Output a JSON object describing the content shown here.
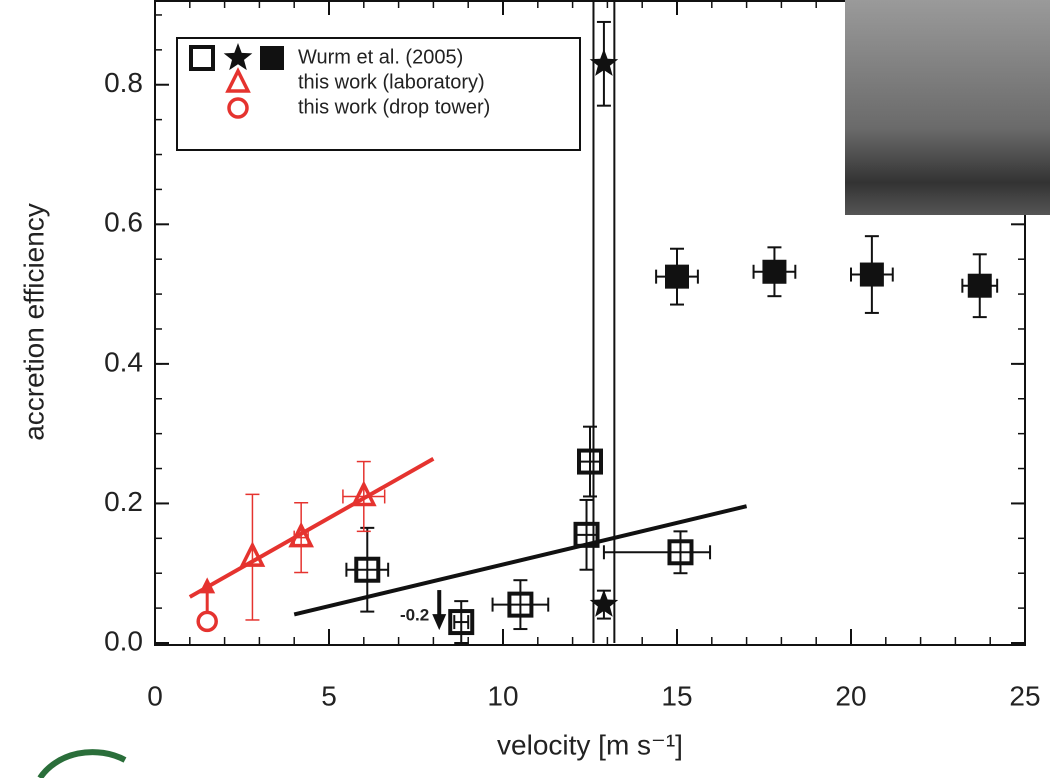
{
  "chart_data": {
    "type": "scatter",
    "x_label": "velocity [m s⁻¹]",
    "y_label": "accretion efficiency",
    "xlim": [
      0,
      25
    ],
    "ylim": [
      0,
      0.92
    ],
    "xticks": [
      0,
      5,
      10,
      15,
      20,
      25
    ],
    "yticks": [
      {
        "value": 0,
        "label": "0.0"
      },
      0.2,
      0.4,
      0.6,
      0.8
    ],
    "x_minor_step": 1,
    "y_minor_step": 0.05,
    "series": [
      {
        "marker": "open-square",
        "color": "#111111",
        "legend": 0,
        "x": [
          6.1,
          8.8,
          10.5,
          12.4,
          12.5,
          15.1
        ],
        "values": [
          0.105,
          0.03,
          0.055,
          0.155,
          0.26,
          0.13
        ],
        "yerr": [
          0.06,
          0.03,
          0.035,
          0.05,
          0.05,
          0.03
        ],
        "xerr_low": [
          0.6,
          0.2,
          0.8,
          0.3,
          0.3,
          2.2
        ],
        "xerr_high": [
          0.6,
          0.2,
          0.8,
          0.3,
          0.3,
          0.85
        ],
        "point_labels": [
          null,
          "-0.2",
          null,
          null,
          null,
          null
        ]
      },
      {
        "marker": "star",
        "color": "#111111",
        "legend": 0,
        "x": [
          12.9,
          12.9
        ],
        "values": [
          0.83,
          0.055
        ],
        "yerr": [
          0.06,
          0.02
        ],
        "xerr_low": [
          0,
          0
        ],
        "xerr_high": [
          0,
          0
        ]
      },
      {
        "marker": "filled-square",
        "color": "#111111",
        "legend": 0,
        "x": [
          15.0,
          17.8,
          20.6,
          23.7
        ],
        "values": [
          0.525,
          0.532,
          0.528,
          0.512
        ],
        "yerr": [
          0.04,
          0.035,
          0.055,
          0.045
        ],
        "xerr_low": [
          0.6,
          0.6,
          0.6,
          0.5
        ],
        "xerr_high": [
          0.6,
          0.6,
          0.6,
          0.5
        ]
      },
      {
        "marker": "triangle",
        "color": "#e5332f",
        "legend": 1,
        "x": [
          2.8,
          4.2,
          6.0
        ],
        "values": [
          0.123,
          0.151,
          0.21
        ],
        "yerr": [
          0.09,
          0.05,
          0.05
        ],
        "xerr_low": [
          0,
          0.2,
          0.6
        ],
        "xerr_high": [
          0,
          0.2,
          0.6
        ]
      },
      {
        "marker": "circle",
        "color": "#e5332f",
        "legend": 2,
        "lower_limit": true,
        "x": [
          1.5
        ],
        "values": [
          0.031
        ],
        "yerr": [
          0
        ],
        "xerr_low": [
          0
        ],
        "xerr_high": [
          0
        ]
      }
    ],
    "lines": [
      {
        "color": "#e5332f",
        "x": [
          1.0,
          8.0
        ],
        "values": [
          0.066,
          0.264
        ]
      },
      {
        "color": "#111111",
        "x": [
          4.0,
          17.0
        ],
        "values": [
          0.041,
          0.196
        ]
      }
    ],
    "vlines": [
      12.6,
      13.2
    ],
    "legend": [
      {
        "label": "Wurm et al. (2005)",
        "markers": [
          "open-square",
          "star",
          "filled-square"
        ],
        "color": "#111111"
      },
      {
        "label": "this work (laboratory)",
        "markers": [
          "triangle"
        ],
        "color": "#e5332f"
      },
      {
        "label": "this work (drop tower)",
        "markers": [
          "circle"
        ],
        "color": "#e5332f"
      }
    ]
  }
}
